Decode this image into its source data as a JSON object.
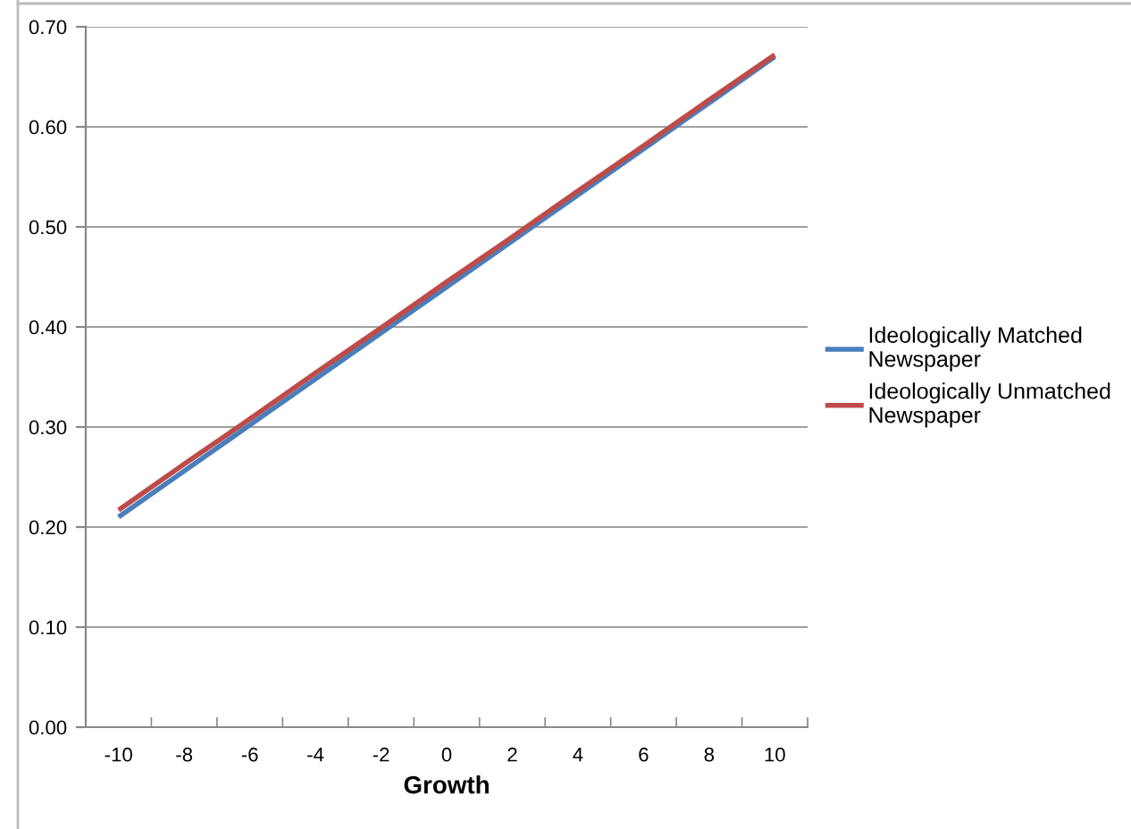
{
  "chart_data": {
    "type": "line",
    "xlabel": "Growth",
    "categories": [
      "-10",
      "-8",
      "-6",
      "-4",
      "-2",
      "0",
      "2",
      "4",
      "6",
      "8",
      "10"
    ],
    "series": [
      {
        "name": "Ideologically Matched Newspaper",
        "color": "#4a7ebb",
        "values": [
          0.21,
          0.256,
          0.302,
          0.348,
          0.394,
          0.44,
          0.486,
          0.532,
          0.578,
          0.624,
          0.67
        ]
      },
      {
        "name": "Ideologically Unmatched Newspaper",
        "color": "#be4b48",
        "values": [
          0.217,
          0.263,
          0.308,
          0.354,
          0.399,
          0.445,
          0.49,
          0.536,
          0.581,
          0.627,
          0.672
        ]
      }
    ],
    "ylim": [
      0,
      0.7
    ],
    "yticks": [
      {
        "value": 0,
        "label": "0.00"
      },
      {
        "value": 0.1,
        "label": "0.10"
      },
      {
        "value": 0.2,
        "label": "0.20"
      },
      {
        "value": 0.3,
        "label": "0.30"
      },
      {
        "value": 0.4,
        "label": "0.40"
      },
      {
        "value": 0.5,
        "label": "0.50"
      },
      {
        "value": 0.6,
        "label": "0.60"
      },
      {
        "value": 0.7,
        "label": "0.70"
      }
    ],
    "grid": "y",
    "legend": "right",
    "marker": "none",
    "line_style": "solid"
  }
}
